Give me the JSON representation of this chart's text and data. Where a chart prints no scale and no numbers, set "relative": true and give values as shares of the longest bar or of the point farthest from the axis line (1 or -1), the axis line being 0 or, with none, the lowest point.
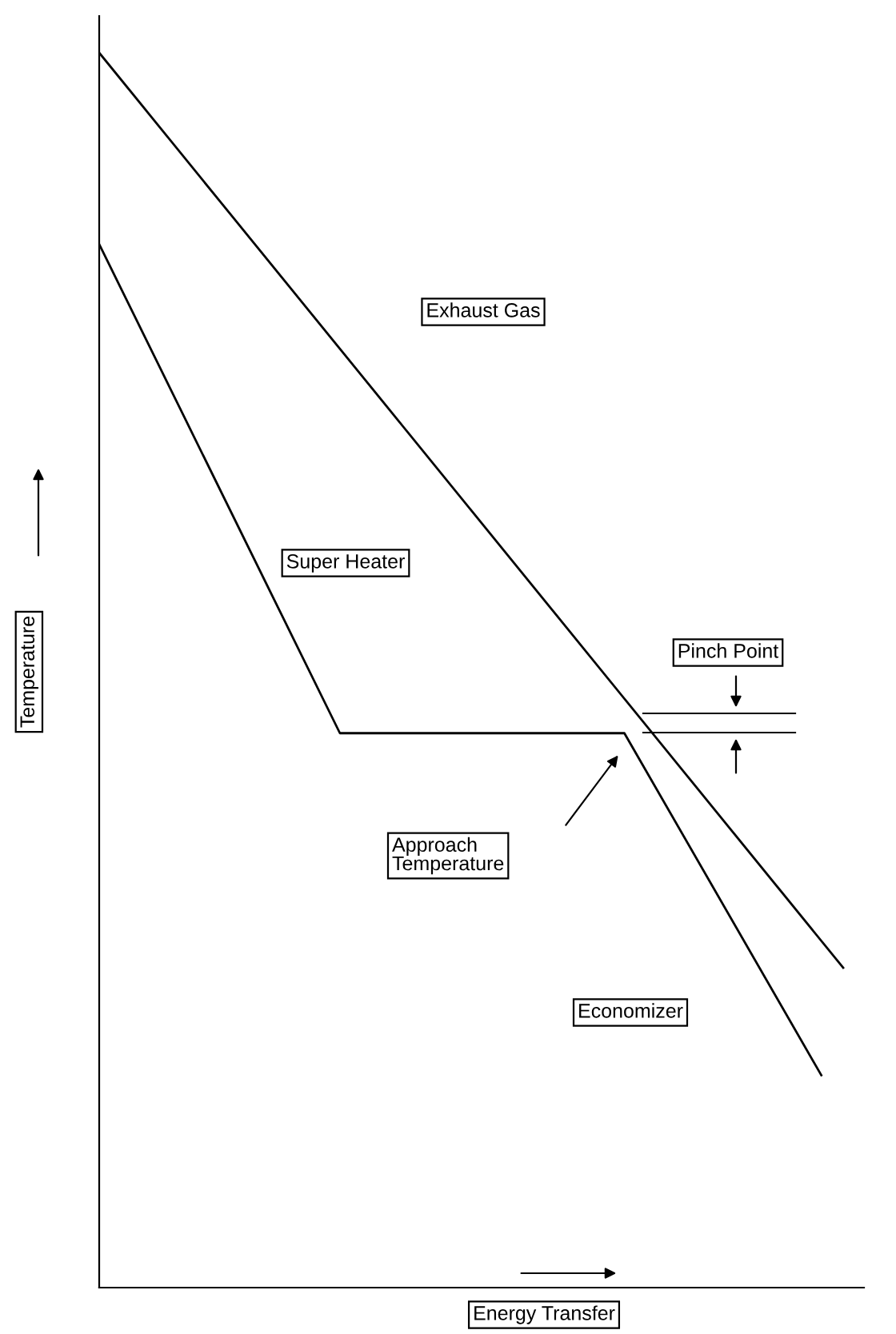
{
  "chart_data": {
    "type": "line",
    "relative": true,
    "xlabel": "Energy Transfer",
    "ylabel": "Temperature",
    "categories": [
      null,
      null,
      null,
      null,
      null,
      null,
      null,
      null,
      null,
      null,
      null,
      null,
      null,
      null,
      null,
      null,
      null,
      null,
      null,
      null,
      null,
      null,
      null,
      null,
      null,
      null,
      null,
      null,
      null,
      null,
      null,
      null,
      null,
      null,
      null
    ],
    "series": [
      {
        "name": "Exhaust Gas",
        "color": "#000000",
        "values": [
          1,
          null,
          null,
          null,
          null,
          null,
          null,
          null,
          null,
          null,
          null,
          null,
          null,
          null,
          null,
          null,
          null,
          null,
          null,
          null,
          null,
          null,
          null,
          null,
          null,
          null,
          null,
          null,
          null,
          null,
          null,
          null,
          null,
          null,
          0.259
        ]
      },
      {
        "color": "#000000",
        "values": [
          0.845,
          null,
          null,
          null,
          null,
          null,
          null,
          null,
          null,
          null,
          null,
          0.449,
          null,
          null,
          null,
          null,
          null,
          null,
          null,
          null,
          null,
          null,
          null,
          null,
          0.449,
          null,
          null,
          null,
          null,
          null,
          null,
          null,
          null,
          0.172,
          null
        ]
      }
    ],
    "annotations": [
      "Super Heater",
      "Pinch Point",
      "Approach\nTemperature",
      "Economizer"
    ],
    "marker": "none",
    "line_style": "solid",
    "legend": false
  }
}
